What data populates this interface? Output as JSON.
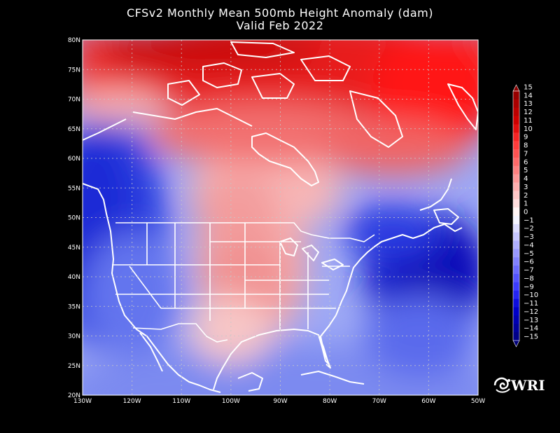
{
  "title": {
    "line1": "CFSv2 Monthly Mean 500mb Height Anomaly (dam)",
    "line2": "Valid Feb 2022"
  },
  "map": {
    "lon_range": [
      -130,
      -50
    ],
    "lat_range": [
      20,
      80
    ],
    "x_ticks": [
      "130W",
      "120W",
      "110W",
      "100W",
      "90W",
      "80W",
      "70W",
      "60W",
      "50W"
    ],
    "y_ticks": [
      "20N",
      "25N",
      "30N",
      "35N",
      "40N",
      "45N",
      "50N",
      "55N",
      "60N",
      "65N",
      "70N",
      "75N",
      "80N"
    ],
    "grid": true,
    "field": "500mb height anomaly",
    "units": "dam",
    "positive_anomaly_region": "Canadian Arctic / Greenland, extending south over central US",
    "negative_anomaly_regions": [
      "Northeast Pacific / West Coast",
      "Northwest Atlantic"
    ]
  },
  "colorbar": {
    "labels": [
      "15",
      "14",
      "13",
      "12",
      "11",
      "10",
      "9",
      "8",
      "7",
      "6",
      "5",
      "4",
      "3",
      "2",
      "1",
      "0",
      "−1",
      "−2",
      "−3",
      "−4",
      "−5",
      "−6",
      "−7",
      "−8",
      "−9",
      "−10",
      "−11",
      "−12",
      "−13",
      "−14",
      "−15"
    ],
    "max_color": "#8b0000",
    "zero_color": "#ffffff",
    "min_color": "#00007a"
  },
  "logo": {
    "text": "WRI",
    "icon": "wri-swirl-icon"
  }
}
